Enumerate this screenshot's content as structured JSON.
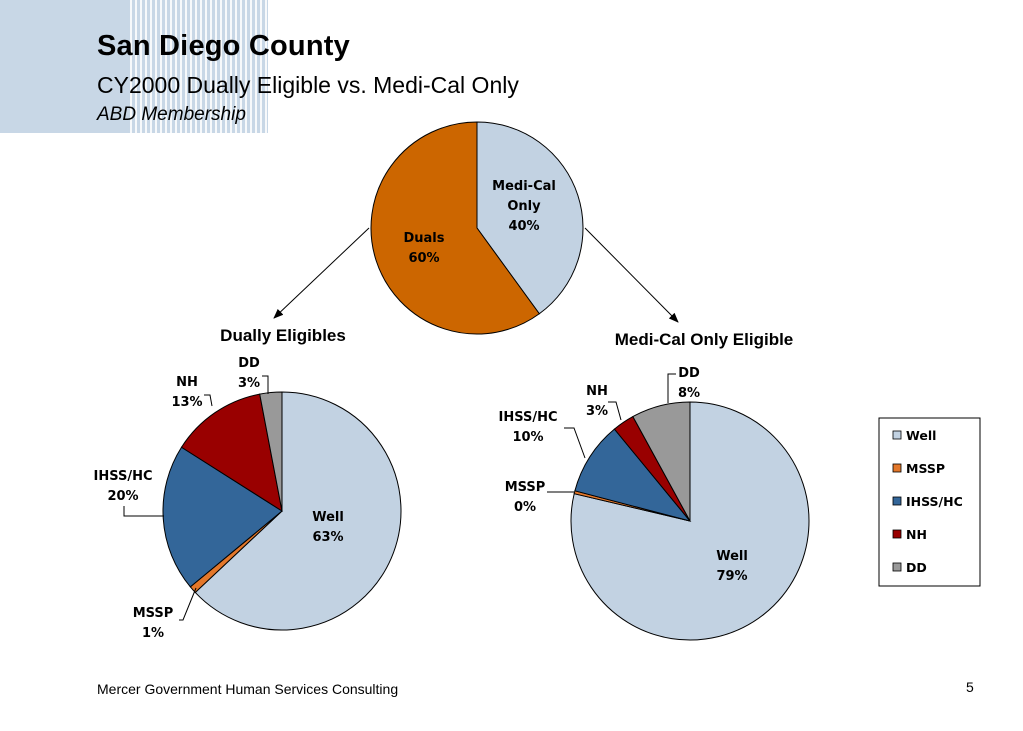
{
  "header": {
    "title": "San Diego County",
    "subtitle": "CY2000 Dually Eligible vs. Medi-Cal Only",
    "subtitle2": "ABD Membership"
  },
  "footer": {
    "left": "Mercer Government Human Services Consulting",
    "page_number": "5"
  },
  "chart_data": [
    {
      "type": "pie",
      "title": "",
      "slices": [
        {
          "label": [
            "Medi-Cal",
            "Only"
          ],
          "pct": "40%",
          "value": 40,
          "color": "#c2d2e2"
        },
        {
          "label": [
            "Duals"
          ],
          "pct": "60%",
          "value": 60,
          "color": "#cc6600"
        }
      ]
    },
    {
      "type": "pie",
      "title": "Dually Eligibles",
      "slices": [
        {
          "label": [
            "Well"
          ],
          "pct": "63%",
          "value": 63,
          "color": "#c2d2e2"
        },
        {
          "label": [
            "MSSP"
          ],
          "pct": "1%",
          "value": 1,
          "color": "#e3772a"
        },
        {
          "label": [
            "IHSS/HC"
          ],
          "pct": "20%",
          "value": 20,
          "color": "#336699"
        },
        {
          "label": [
            "NH"
          ],
          "pct": "13%",
          "value": 13,
          "color": "#990000"
        },
        {
          "label": [
            "DD"
          ],
          "pct": "3%",
          "value": 3,
          "color": "#999999"
        }
      ]
    },
    {
      "type": "pie",
      "title": "Medi-Cal Only Eligible",
      "slices": [
        {
          "label": [
            "Well"
          ],
          "pct": "79%",
          "value": 79,
          "color": "#c2d2e2"
        },
        {
          "label": [
            "MSSP"
          ],
          "pct": "0%",
          "value": 0.4,
          "color": "#e3772a"
        },
        {
          "label": [
            "IHSS/HC"
          ],
          "pct": "10%",
          "value": 10,
          "color": "#336699"
        },
        {
          "label": [
            "NH"
          ],
          "pct": "3%",
          "value": 3,
          "color": "#990000"
        },
        {
          "label": [
            "DD"
          ],
          "pct": "8%",
          "value": 8,
          "color": "#999999"
        }
      ]
    }
  ],
  "legend": {
    "items": [
      {
        "label": "Well",
        "color": "#c2d2e2"
      },
      {
        "label": "MSSP",
        "color": "#e3772a"
      },
      {
        "label": "IHSS/HC",
        "color": "#336699"
      },
      {
        "label": "NH",
        "color": "#990000"
      },
      {
        "label": "DD",
        "color": "#999999"
      }
    ]
  }
}
